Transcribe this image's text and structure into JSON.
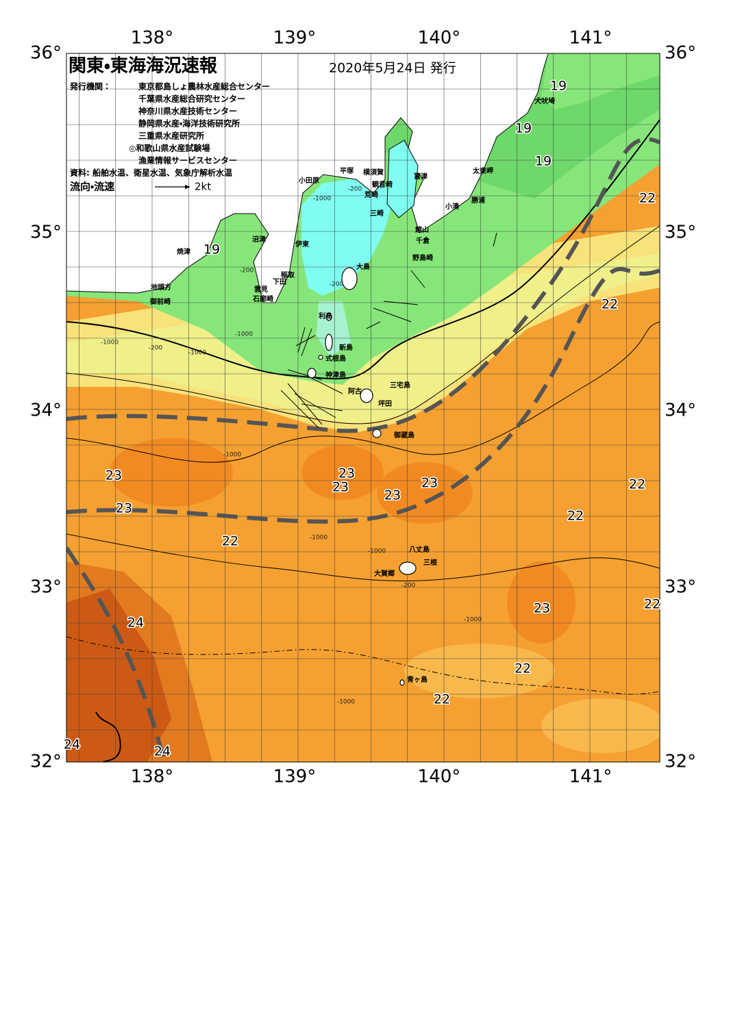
{
  "header": {
    "title": "関東・東海海況速報",
    "date": "2020年5月24日 発行"
  },
  "issuers": {
    "label": "発行機関：",
    "list": [
      "東京都島しょ農林水産総合センター",
      "千葉県水産総合研究センター",
      "神奈川県水産技術センター",
      "静岡県水産・海洋技術研究所",
      "三重県水産研究所",
      "◎和歌山県水産試験場",
      "漁業情報サービスセンター"
    ]
  },
  "source": "資料: 船舶水温、衛星水温、気象庁解析水温",
  "legend": {
    "label": "流向・流速",
    "scale": "2kt"
  },
  "axes": {
    "lon_labels": [
      "138°",
      "139°",
      "140°",
      "141°"
    ],
    "lat_labels": [
      "36°",
      "35°",
      "34°",
      "33°",
      "32°"
    ]
  },
  "places": [
    "犬吠埼",
    "太東岬",
    "勝浦",
    "小湊",
    "館山",
    "千倉",
    "野島崎",
    "富津",
    "横須賀",
    "観音崎",
    "荒崎",
    "三崎",
    "平塚",
    "小田原",
    "沼津",
    "伊東",
    "焼津",
    "稲取",
    "下田",
    "雲見",
    "石廊崎",
    "地頭方",
    "御前崎",
    "大島",
    "利島",
    "新島",
    "式根島",
    "神津島",
    "三宅島",
    "阿古",
    "坪田",
    "御蔵島",
    "八丈島",
    "三根",
    "大賀郷",
    "青ヶ島"
  ],
  "temperature_labels": [
    "19",
    "19",
    "19",
    "19",
    "22",
    "22",
    "22",
    "22",
    "22",
    "22",
    "22",
    "22",
    "23",
    "23",
    "23",
    "23",
    "23",
    "23",
    "23",
    "24",
    "24",
    "24"
  ],
  "depth_labels": [
    "-200",
    "-1000",
    "-200",
    "-1000",
    "-200",
    "-1000",
    "-200",
    "-1000",
    "-1000",
    "-1000",
    "-1000",
    "-200",
    "-1000",
    "-1000"
  ]
}
